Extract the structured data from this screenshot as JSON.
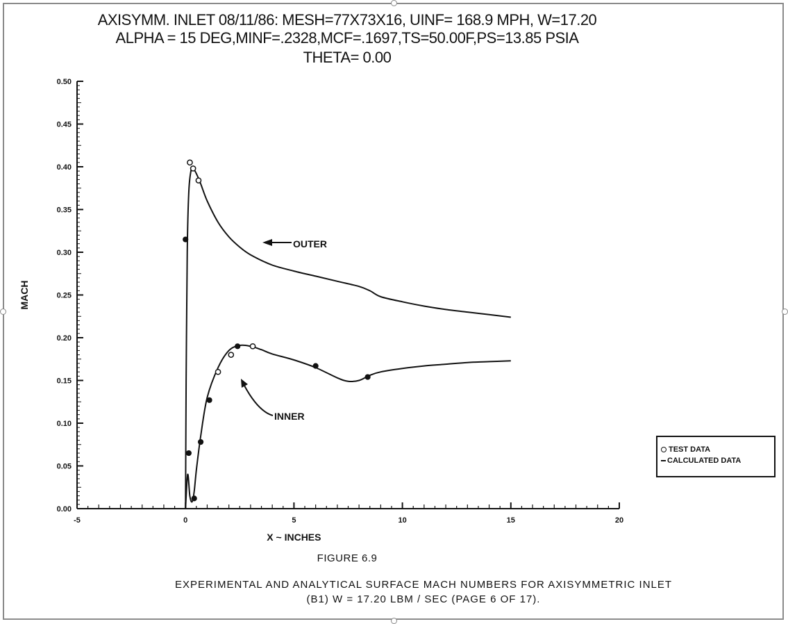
{
  "title": {
    "line1": "AXISYMM. INLET 08/11/86: MESH=77X73X16, UINF= 168.9 MPH, W=17.20",
    "line2": "ALPHA = 15 DEG,MINF=.2328,MCF=.1697,TS=50.00F,PS=13.85 PSIA",
    "line3": "THETA=   0.00"
  },
  "chart_data": {
    "type": "line",
    "xlabel": "X ~ INCHES",
    "ylabel": "MACH",
    "xlim": [
      -5,
      20
    ],
    "ylim": [
      0.0,
      0.5
    ],
    "x_ticks": [
      -5,
      0,
      5,
      10,
      15,
      20
    ],
    "x_tick_labels": [
      "-5",
      "0",
      "5",
      "10",
      "15",
      "20"
    ],
    "y_ticks": [
      0.0,
      0.05,
      0.1,
      0.15,
      0.2,
      0.25,
      0.3,
      0.35,
      0.4,
      0.45,
      0.5
    ],
    "y_tick_labels": [
      "0.00",
      "0.05",
      "0.10",
      "0.15",
      "0.20",
      "0.25",
      "0.30",
      "0.35",
      "0.40",
      "0.45",
      "0.50"
    ],
    "grid": false,
    "legend_position": "lower-right",
    "legend": [
      "TEST DATA",
      "CALCULATED DATA"
    ],
    "annotations": [
      "OUTER",
      "INNER"
    ],
    "series": [
      {
        "name": "OUTER",
        "x": [
          0.0,
          0.03,
          0.08,
          0.15,
          0.25,
          0.35,
          0.5,
          0.7,
          1.0,
          1.5,
          2.0,
          2.5,
          3.0,
          4.0,
          5.0,
          6.0,
          7.0,
          8.0,
          8.5,
          9.0,
          10.0,
          11.0,
          12.0,
          13.0,
          14.0,
          15.0
        ],
        "y": [
          0.0,
          0.15,
          0.3,
          0.37,
          0.395,
          0.398,
          0.392,
          0.38,
          0.36,
          0.335,
          0.318,
          0.306,
          0.297,
          0.285,
          0.278,
          0.272,
          0.266,
          0.26,
          0.255,
          0.248,
          0.242,
          0.237,
          0.233,
          0.23,
          0.227,
          0.224
        ]
      },
      {
        "name": "INNER",
        "x": [
          0.0,
          0.1,
          0.2,
          0.3,
          0.4,
          0.5,
          0.7,
          1.0,
          1.5,
          2.0,
          2.5,
          3.0,
          3.5,
          4.0,
          5.0,
          6.0,
          7.0,
          7.5,
          8.0,
          8.5,
          9.0,
          10.0,
          11.0,
          12.0,
          13.0,
          14.0,
          15.0
        ],
        "y": [
          0.0,
          0.04,
          0.015,
          0.008,
          0.02,
          0.045,
          0.085,
          0.13,
          0.165,
          0.185,
          0.191,
          0.19,
          0.186,
          0.181,
          0.174,
          0.165,
          0.153,
          0.149,
          0.15,
          0.156,
          0.16,
          0.164,
          0.167,
          0.169,
          0.171,
          0.172,
          0.173
        ]
      }
    ],
    "test_data": {
      "outer": {
        "open": [
          [
            0.2,
            0.405
          ],
          [
            0.35,
            0.398
          ],
          [
            0.6,
            0.384
          ]
        ],
        "filled": [
          [
            0.0,
            0.315
          ]
        ]
      },
      "inner": {
        "filled": [
          [
            0.15,
            0.065
          ],
          [
            0.4,
            0.012
          ],
          [
            0.7,
            0.078
          ],
          [
            1.1,
            0.127
          ],
          [
            2.4,
            0.19
          ],
          [
            6.0,
            0.167
          ],
          [
            8.4,
            0.154
          ]
        ],
        "open": [
          [
            1.5,
            0.16
          ],
          [
            2.1,
            0.18
          ],
          [
            3.1,
            0.19
          ]
        ]
      }
    }
  },
  "figure_label": "FIGURE 6.9",
  "caption": {
    "line1": "EXPERIMENTAL AND ANALYTICAL SURFACE MACH NUMBERS FOR AXISYMMETRIC INLET",
    "line2": "(B1)  W =  17.20 LBM / SEC   (PAGE 6 OF 17)."
  }
}
